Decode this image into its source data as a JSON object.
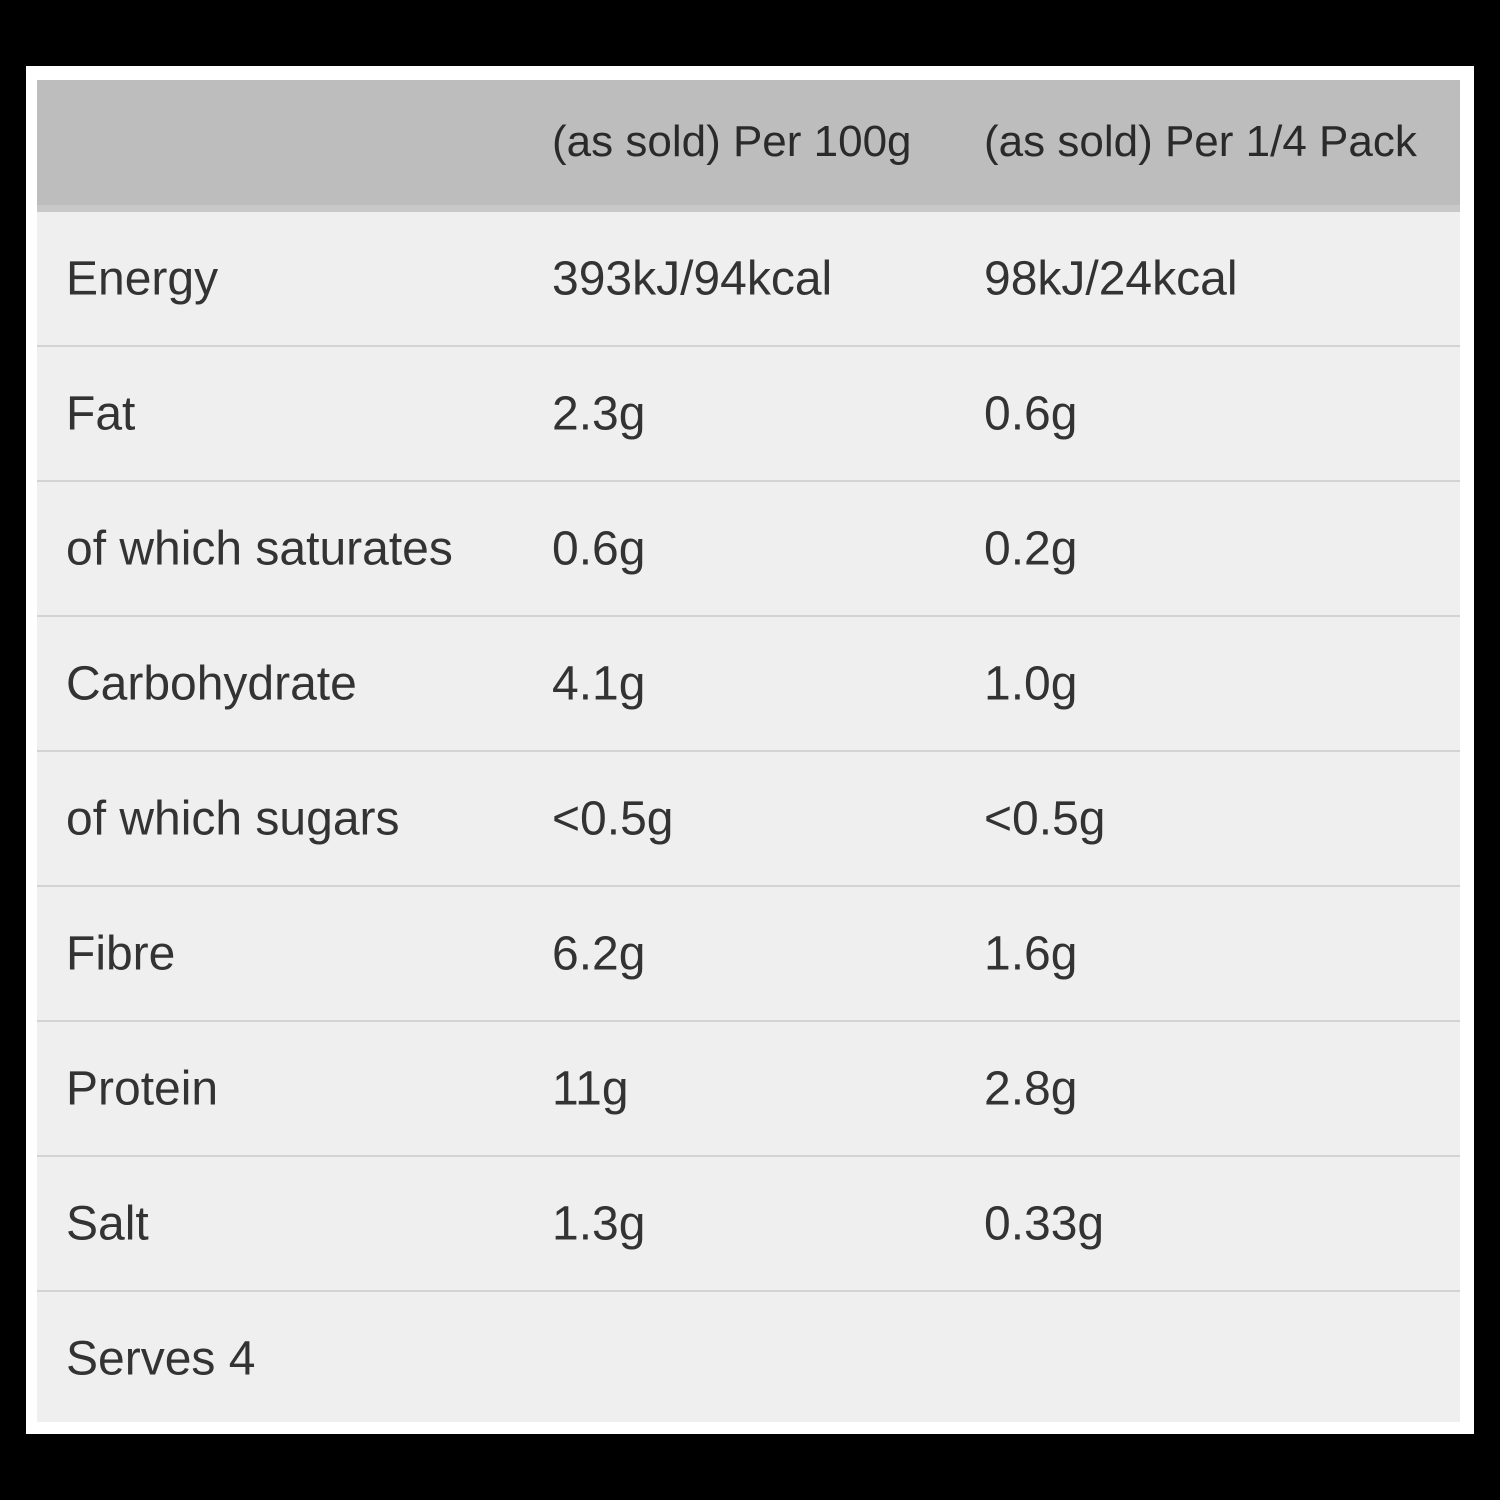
{
  "header": [
    "",
    "(as sold) Per 100g",
    "(as sold) Per 1/4 Pack"
  ],
  "rows": [
    [
      "Energy",
      "393kJ/94kcal",
      "98kJ/24kcal"
    ],
    [
      "Fat",
      "2.3g",
      "0.6g"
    ],
    [
      "of which saturates",
      "0.6g",
      "0.2g"
    ],
    [
      "Carbohydrate",
      "4.1g",
      "1.0g"
    ],
    [
      "of which sugars",
      "<0.5g",
      "<0.5g"
    ],
    [
      "Fibre",
      "6.2g",
      "1.6g"
    ],
    [
      "Protein",
      "11g",
      "2.8g"
    ],
    [
      "Salt",
      "1.3g",
      "0.33g"
    ]
  ],
  "footer": "Serves 4"
}
